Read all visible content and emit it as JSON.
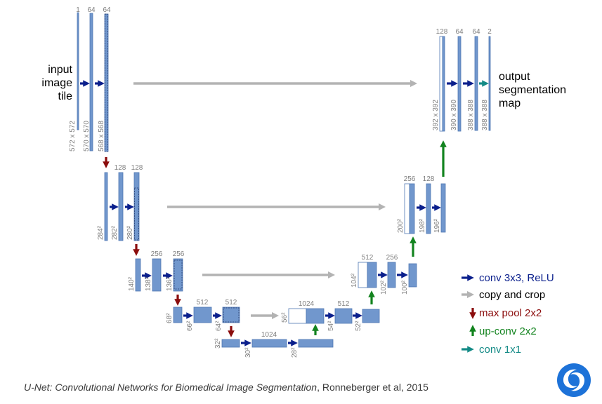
{
  "colors": {
    "block_fill": "#7197cd",
    "block_stroke": "#4f77b3",
    "conv": "#0a1f8c",
    "copy": "#b3b3b3",
    "pool": "#8b0d0d",
    "upconv": "#12831e",
    "conv1x1": "#138a86",
    "label_gray": "#7f7f7f",
    "logo": "#1d72d8"
  },
  "input_label": [
    "input",
    "image",
    "tile"
  ],
  "output_label": [
    "output",
    "segmentation",
    "map"
  ],
  "levels": [
    {
      "maps": [
        {
          "ch": "1",
          "dim": "572 x 572"
        },
        {
          "ch": "64",
          "dim": "570 x 570"
        },
        {
          "ch": "64",
          "dim": "568 x 568"
        }
      ]
    },
    {
      "maps": [
        {
          "ch": "",
          "dim": "284²"
        },
        {
          "ch": "128",
          "dim": "282²"
        },
        {
          "ch": "128",
          "dim": "280²"
        }
      ]
    },
    {
      "maps": [
        {
          "ch": "",
          "dim": "140²"
        },
        {
          "ch": "256",
          "dim": "138²"
        },
        {
          "ch": "256",
          "dim": "136²"
        }
      ]
    },
    {
      "maps": [
        {
          "ch": "",
          "dim": "68²"
        },
        {
          "ch": "512",
          "dim": "66²"
        },
        {
          "ch": "512",
          "dim": "64²"
        }
      ]
    },
    {
      "maps": [
        {
          "ch": "",
          "dim": "32²"
        },
        {
          "ch": "1024",
          "dim": "30²"
        },
        {
          "ch": "",
          "dim": "28²"
        }
      ]
    }
  ],
  "decoder": [
    {
      "maps": [
        {
          "ch": "1024",
          "dim": "56²"
        },
        {
          "ch": "512",
          "dim": "54²"
        },
        {
          "ch": "",
          "dim": "52²"
        }
      ]
    },
    {
      "maps": [
        {
          "ch": "512",
          "dim": "104²"
        },
        {
          "ch": "256",
          "dim": "102²"
        },
        {
          "ch": "",
          "dim": "100²"
        }
      ]
    },
    {
      "maps": [
        {
          "ch": "256",
          "dim": "200²"
        },
        {
          "ch": "128",
          "dim": "198²"
        },
        {
          "ch": "",
          "dim": "196²"
        }
      ]
    },
    {
      "maps": [
        {
          "ch": "128",
          "dim": "392 x 392"
        },
        {
          "ch": "64",
          "dim": "390 x 390"
        },
        {
          "ch": "64",
          "dim": "388 x 388"
        },
        {
          "ch": "2",
          "dim": "388 x 388"
        }
      ]
    }
  ],
  "legend": [
    {
      "label": "conv 3x3, ReLU",
      "icon": "arrow-right-navy",
      "color_key": "conv"
    },
    {
      "label": "copy and crop",
      "icon": "arrow-right-gray",
      "color_key": "copy"
    },
    {
      "label": "max pool 2x2",
      "icon": "arrow-down-red",
      "color_key": "pool"
    },
    {
      "label": "up-conv 2x2",
      "icon": "arrow-up-green",
      "color_key": "upconv"
    },
    {
      "label": "conv 1x1",
      "icon": "arrow-right-teal",
      "color_key": "conv1x1"
    }
  ],
  "caption": {
    "title": "U-Net: Convolutional Networks for Biomedical Image Segmentation",
    "rest": ", Ronneberger et al, 2015"
  },
  "logo_icon": "swirl-logo-icon"
}
